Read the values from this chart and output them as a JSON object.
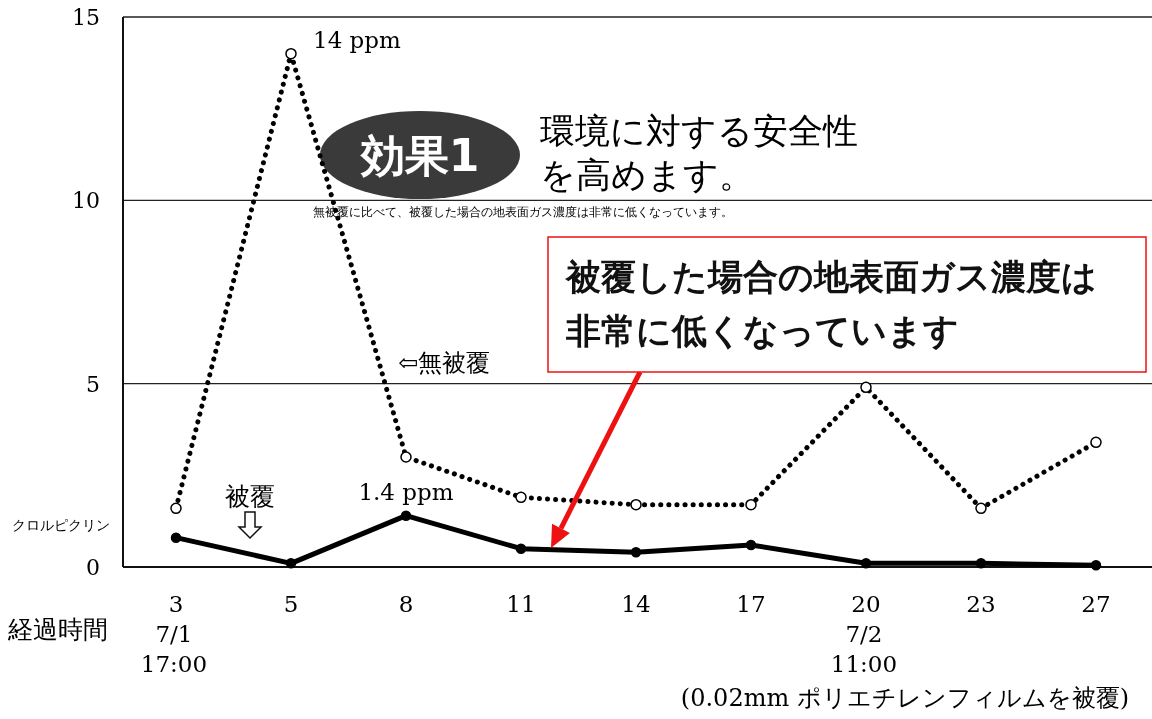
{
  "chart_data": {
    "type": "line",
    "title": "環境に対する安全性を高めます。",
    "subtitle": "無被覆に比べて、被覆した場合の地表面ガス濃度は非常に低くなっています。",
    "xlabel": "経過時間",
    "ylabel": "クロルピクリン",
    "categories": [
      "3\n7/1\n17:00",
      "5",
      "8",
      "11",
      "14",
      "17",
      "20\n7/2\n11:00",
      "23",
      "27"
    ],
    "series": [
      {
        "name": "⇦無被覆",
        "color": "#000000",
        "line_style": "dotted",
        "values": [
          1.6,
          14,
          3.0,
          1.9,
          1.7,
          1.7,
          4.9,
          1.6,
          3.4
        ],
        "value_labels": [
          null,
          "14 ppm",
          null,
          null,
          null,
          null,
          null,
          null,
          null
        ]
      },
      {
        "color": "#000000",
        "line_style": "solid",
        "values": [
          0.8,
          0.1,
          1.4,
          0.5,
          0.4,
          0.6,
          0.1,
          0.1,
          0.05
        ],
        "value_labels": [
          null,
          null,
          "1.4 ppm",
          null,
          null,
          null,
          null,
          null,
          null
        ]
      }
    ],
    "ylim": [
      0,
      15
    ],
    "yticks": [
      0,
      5,
      10,
      15
    ],
    "grid": "y",
    "marker": "circle",
    "annotations": [
      "効果1",
      "被覆",
      "被覆した場合の地表面ガス濃度は非常に低くなっています",
      "(0.02mm ポリエチレンフィルムを被覆)"
    ]
  }
}
